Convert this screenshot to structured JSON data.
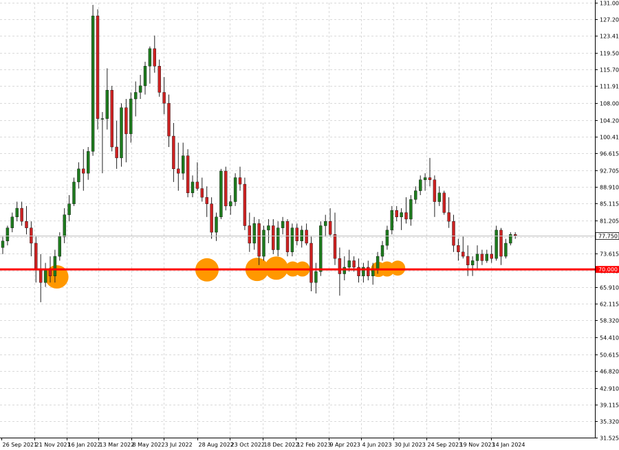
{
  "chart_data": {
    "type": "candlestick",
    "title": "",
    "xlabel": "",
    "ylabel": "",
    "interval": "weekly",
    "ylim": [
      31.525,
      131.0
    ],
    "y_ticks": [
      "131.000",
      "127.205",
      "123.410",
      "119.500",
      "115.705",
      "111.910",
      "108.000",
      "104.205",
      "100.410",
      "96.615",
      "92.705",
      "88.910",
      "85.115",
      "81.205",
      "77.410",
      "73.615",
      "69.705",
      "65.910",
      "62.115",
      "58.320",
      "54.410",
      "50.615",
      "46.820",
      "42.910",
      "39.115",
      "35.320",
      "31.525"
    ],
    "x_ticks": [
      "26 Sep 2021",
      "21 Nov 2021",
      "16 Jan 2022",
      "13 Mar 2022",
      "8 May 2022",
      "3 Jul 2022",
      "28 Aug 2022",
      "23 Oct 2022",
      "18 Dec 2022",
      "12 Feb 2023",
      "9 Apr 2023",
      "4 Jun 2023",
      "30 Jul 2023",
      "24 Sep 2023",
      "19 Nov 2023",
      "14 Jan 2024"
    ],
    "grid": true,
    "current_price": {
      "value": 77.75,
      "label": "77.750"
    },
    "level": {
      "value": 70.0,
      "label": "70.000",
      "color": "#ff0000"
    },
    "touch_points": [
      {
        "x": 59,
        "y": 68.3,
        "size": "large"
      },
      {
        "x": 215,
        "y": 69.9,
        "size": "large"
      },
      {
        "x": 267,
        "y": 70.0,
        "size": "large"
      },
      {
        "x": 287,
        "y": 70.3,
        "size": "large"
      },
      {
        "x": 304,
        "y": 70.1,
        "size": "medium"
      },
      {
        "x": 314,
        "y": 70.1,
        "size": "medium"
      },
      {
        "x": 393,
        "y": 70.0,
        "size": "medium"
      },
      {
        "x": 402,
        "y": 70.1,
        "size": "medium"
      },
      {
        "x": 413,
        "y": 70.3,
        "size": "medium"
      }
    ],
    "colors": {
      "bull": "#1e7a1e",
      "bear": "#cc2222",
      "wick": "#222222",
      "grid": "#d9d9d9",
      "circle": "#ff9800"
    },
    "candles": [
      {
        "o": 75.0,
        "h": 77.5,
        "l": 73.5,
        "c": 76.5
      },
      {
        "o": 76.5,
        "h": 80.0,
        "l": 75.5,
        "c": 79.5
      },
      {
        "o": 79.5,
        "h": 83.0,
        "l": 78.5,
        "c": 82.0
      },
      {
        "o": 82.0,
        "h": 85.5,
        "l": 81.0,
        "c": 84.0
      },
      {
        "o": 84.0,
        "h": 85.5,
        "l": 80.0,
        "c": 81.0
      },
      {
        "o": 81.0,
        "h": 84.5,
        "l": 78.0,
        "c": 79.5
      },
      {
        "o": 79.5,
        "h": 81.0,
        "l": 73.0,
        "c": 76.0
      },
      {
        "o": 76.0,
        "h": 77.5,
        "l": 67.0,
        "c": 70.0
      },
      {
        "o": 70.0,
        "h": 73.5,
        "l": 62.5,
        "c": 67.0
      },
      {
        "o": 67.0,
        "h": 71.5,
        "l": 66.0,
        "c": 70.0
      },
      {
        "o": 70.0,
        "h": 73.0,
        "l": 67.0,
        "c": 68.5
      },
      {
        "o": 68.5,
        "h": 74.5,
        "l": 67.0,
        "c": 73.0
      },
      {
        "o": 73.0,
        "h": 78.5,
        "l": 72.0,
        "c": 77.5
      },
      {
        "o": 77.5,
        "h": 84.0,
        "l": 76.0,
        "c": 82.5
      },
      {
        "o": 82.5,
        "h": 87.0,
        "l": 81.0,
        "c": 85.0
      },
      {
        "o": 85.0,
        "h": 91.0,
        "l": 84.5,
        "c": 90.0
      },
      {
        "o": 90.0,
        "h": 94.5,
        "l": 88.5,
        "c": 93.0
      },
      {
        "o": 93.0,
        "h": 97.5,
        "l": 88.0,
        "c": 92.0
      },
      {
        "o": 92.0,
        "h": 98.0,
        "l": 90.5,
        "c": 97.0
      },
      {
        "o": 97.0,
        "h": 130.5,
        "l": 96.0,
        "c": 128.0
      },
      {
        "o": 128.0,
        "h": 129.5,
        "l": 102.0,
        "c": 104.5
      },
      {
        "o": 104.5,
        "h": 106.0,
        "l": 92.0,
        "c": 104.5
      },
      {
        "o": 104.5,
        "h": 116.0,
        "l": 102.0,
        "c": 111.0
      },
      {
        "o": 111.0,
        "h": 112.0,
        "l": 97.0,
        "c": 98.0
      },
      {
        "o": 98.0,
        "h": 104.0,
        "l": 93.0,
        "c": 95.5
      },
      {
        "o": 95.5,
        "h": 108.0,
        "l": 93.5,
        "c": 107.0
      },
      {
        "o": 107.0,
        "h": 109.0,
        "l": 94.5,
        "c": 101.0
      },
      {
        "o": 101.0,
        "h": 110.5,
        "l": 99.0,
        "c": 109.0
      },
      {
        "o": 109.0,
        "h": 113.0,
        "l": 105.0,
        "c": 110.5
      },
      {
        "o": 110.5,
        "h": 114.5,
        "l": 109.0,
        "c": 112.0
      },
      {
        "o": 112.0,
        "h": 117.5,
        "l": 110.0,
        "c": 116.5
      },
      {
        "o": 116.5,
        "h": 121.0,
        "l": 112.5,
        "c": 120.5
      },
      {
        "o": 120.5,
        "h": 123.5,
        "l": 115.0,
        "c": 116.5
      },
      {
        "o": 116.5,
        "h": 118.0,
        "l": 109.5,
        "c": 110.5
      },
      {
        "o": 110.5,
        "h": 114.0,
        "l": 105.5,
        "c": 108.0
      },
      {
        "o": 108.0,
        "h": 110.0,
        "l": 98.0,
        "c": 100.5
      },
      {
        "o": 100.5,
        "h": 103.5,
        "l": 90.0,
        "c": 93.0
      },
      {
        "o": 93.0,
        "h": 99.0,
        "l": 88.0,
        "c": 92.0
      },
      {
        "o": 92.0,
        "h": 99.0,
        "l": 90.5,
        "c": 96.0
      },
      {
        "o": 96.0,
        "h": 97.5,
        "l": 86.5,
        "c": 87.5
      },
      {
        "o": 87.5,
        "h": 91.5,
        "l": 86.5,
        "c": 90.0
      },
      {
        "o": 90.0,
        "h": 94.5,
        "l": 88.0,
        "c": 88.5
      },
      {
        "o": 88.5,
        "h": 91.0,
        "l": 85.5,
        "c": 86.5
      },
      {
        "o": 86.5,
        "h": 89.0,
        "l": 82.0,
        "c": 85.0
      },
      {
        "o": 85.0,
        "h": 86.5,
        "l": 77.0,
        "c": 78.5
      },
      {
        "o": 78.5,
        "h": 83.0,
        "l": 76.5,
        "c": 82.0
      },
      {
        "o": 82.0,
        "h": 93.0,
        "l": 81.5,
        "c": 92.5
      },
      {
        "o": 92.5,
        "h": 93.5,
        "l": 83.5,
        "c": 84.5
      },
      {
        "o": 84.5,
        "h": 87.0,
        "l": 82.5,
        "c": 85.5
      },
      {
        "o": 85.5,
        "h": 92.0,
        "l": 84.5,
        "c": 91.0
      },
      {
        "o": 91.0,
        "h": 93.5,
        "l": 88.0,
        "c": 89.5
      },
      {
        "o": 89.5,
        "h": 91.0,
        "l": 79.0,
        "c": 80.0
      },
      {
        "o": 80.0,
        "h": 83.0,
        "l": 74.0,
        "c": 76.0
      },
      {
        "o": 76.0,
        "h": 82.0,
        "l": 74.5,
        "c": 80.5
      },
      {
        "o": 80.5,
        "h": 81.5,
        "l": 71.0,
        "c": 73.0
      },
      {
        "o": 73.0,
        "h": 80.0,
        "l": 72.0,
        "c": 79.0
      },
      {
        "o": 79.0,
        "h": 81.5,
        "l": 76.0,
        "c": 80.0
      },
      {
        "o": 80.0,
        "h": 81.5,
        "l": 73.5,
        "c": 74.5
      },
      {
        "o": 74.5,
        "h": 81.0,
        "l": 73.0,
        "c": 79.5
      },
      {
        "o": 79.5,
        "h": 82.0,
        "l": 78.0,
        "c": 81.0
      },
      {
        "o": 81.0,
        "h": 81.5,
        "l": 73.0,
        "c": 74.0
      },
      {
        "o": 74.0,
        "h": 80.5,
        "l": 73.0,
        "c": 79.5
      },
      {
        "o": 79.5,
        "h": 80.5,
        "l": 75.5,
        "c": 76.5
      },
      {
        "o": 76.5,
        "h": 80.0,
        "l": 75.0,
        "c": 79.0
      },
      {
        "o": 79.0,
        "h": 80.5,
        "l": 75.5,
        "c": 76.0
      },
      {
        "o": 76.0,
        "h": 77.5,
        "l": 65.0,
        "c": 67.0
      },
      {
        "o": 67.0,
        "h": 71.5,
        "l": 64.5,
        "c": 69.5
      },
      {
        "o": 69.5,
        "h": 81.0,
        "l": 68.5,
        "c": 80.0
      },
      {
        "o": 80.0,
        "h": 82.5,
        "l": 77.5,
        "c": 81.0
      },
      {
        "o": 81.0,
        "h": 84.0,
        "l": 77.5,
        "c": 78.0
      },
      {
        "o": 78.0,
        "h": 83.0,
        "l": 71.0,
        "c": 72.5
      },
      {
        "o": 72.5,
        "h": 75.0,
        "l": 64.0,
        "c": 69.0
      },
      {
        "o": 69.0,
        "h": 73.0,
        "l": 67.5,
        "c": 70.5
      },
      {
        "o": 70.5,
        "h": 74.5,
        "l": 69.5,
        "c": 72.0
      },
      {
        "o": 72.0,
        "h": 73.0,
        "l": 69.5,
        "c": 70.5
      },
      {
        "o": 70.5,
        "h": 72.5,
        "l": 67.0,
        "c": 68.5
      },
      {
        "o": 68.5,
        "h": 71.5,
        "l": 67.0,
        "c": 70.5
      },
      {
        "o": 70.5,
        "h": 72.0,
        "l": 67.5,
        "c": 68.5
      },
      {
        "o": 68.5,
        "h": 71.5,
        "l": 66.5,
        "c": 70.0
      },
      {
        "o": 70.0,
        "h": 74.0,
        "l": 69.0,
        "c": 73.0
      },
      {
        "o": 73.0,
        "h": 76.5,
        "l": 72.0,
        "c": 75.5
      },
      {
        "o": 75.5,
        "h": 80.0,
        "l": 74.5,
        "c": 79.0
      },
      {
        "o": 79.0,
        "h": 84.5,
        "l": 78.0,
        "c": 83.5
      },
      {
        "o": 83.5,
        "h": 84.5,
        "l": 81.0,
        "c": 82.0
      },
      {
        "o": 82.0,
        "h": 84.0,
        "l": 79.0,
        "c": 83.0
      },
      {
        "o": 83.0,
        "h": 86.5,
        "l": 80.5,
        "c": 81.5
      },
      {
        "o": 81.5,
        "h": 87.0,
        "l": 80.0,
        "c": 86.0
      },
      {
        "o": 86.0,
        "h": 89.0,
        "l": 85.0,
        "c": 88.0
      },
      {
        "o": 88.0,
        "h": 91.5,
        "l": 87.0,
        "c": 90.5
      },
      {
        "o": 90.5,
        "h": 92.0,
        "l": 88.0,
        "c": 91.0
      },
      {
        "o": 91.0,
        "h": 95.5,
        "l": 89.0,
        "c": 90.5
      },
      {
        "o": 90.5,
        "h": 91.5,
        "l": 82.0,
        "c": 85.5
      },
      {
        "o": 85.5,
        "h": 89.0,
        "l": 84.5,
        "c": 87.5
      },
      {
        "o": 87.5,
        "h": 88.0,
        "l": 82.5,
        "c": 83.0
      },
      {
        "o": 83.0,
        "h": 86.5,
        "l": 79.5,
        "c": 81.0
      },
      {
        "o": 81.0,
        "h": 82.5,
        "l": 74.0,
        "c": 75.5
      },
      {
        "o": 75.5,
        "h": 77.0,
        "l": 72.0,
        "c": 74.0
      },
      {
        "o": 74.0,
        "h": 77.5,
        "l": 72.5,
        "c": 73.0
      },
      {
        "o": 73.0,
        "h": 75.5,
        "l": 68.5,
        "c": 71.0
      },
      {
        "o": 71.0,
        "h": 73.0,
        "l": 68.5,
        "c": 72.0
      },
      {
        "o": 72.0,
        "h": 75.5,
        "l": 70.0,
        "c": 73.5
      },
      {
        "o": 73.5,
        "h": 74.5,
        "l": 71.0,
        "c": 72.0
      },
      {
        "o": 72.0,
        "h": 74.5,
        "l": 71.5,
        "c": 73.5
      },
      {
        "o": 73.5,
        "h": 75.5,
        "l": 71.5,
        "c": 72.5
      },
      {
        "o": 72.5,
        "h": 80.0,
        "l": 72.0,
        "c": 79.0
      },
      {
        "o": 79.0,
        "h": 79.5,
        "l": 71.0,
        "c": 73.0
      },
      {
        "o": 73.0,
        "h": 77.0,
        "l": 72.5,
        "c": 76.0
      },
      {
        "o": 76.0,
        "h": 78.5,
        "l": 75.5,
        "c": 78.0
      },
      {
        "o": 78.0,
        "h": 78.5,
        "l": 77.0,
        "c": 77.75
      }
    ]
  }
}
